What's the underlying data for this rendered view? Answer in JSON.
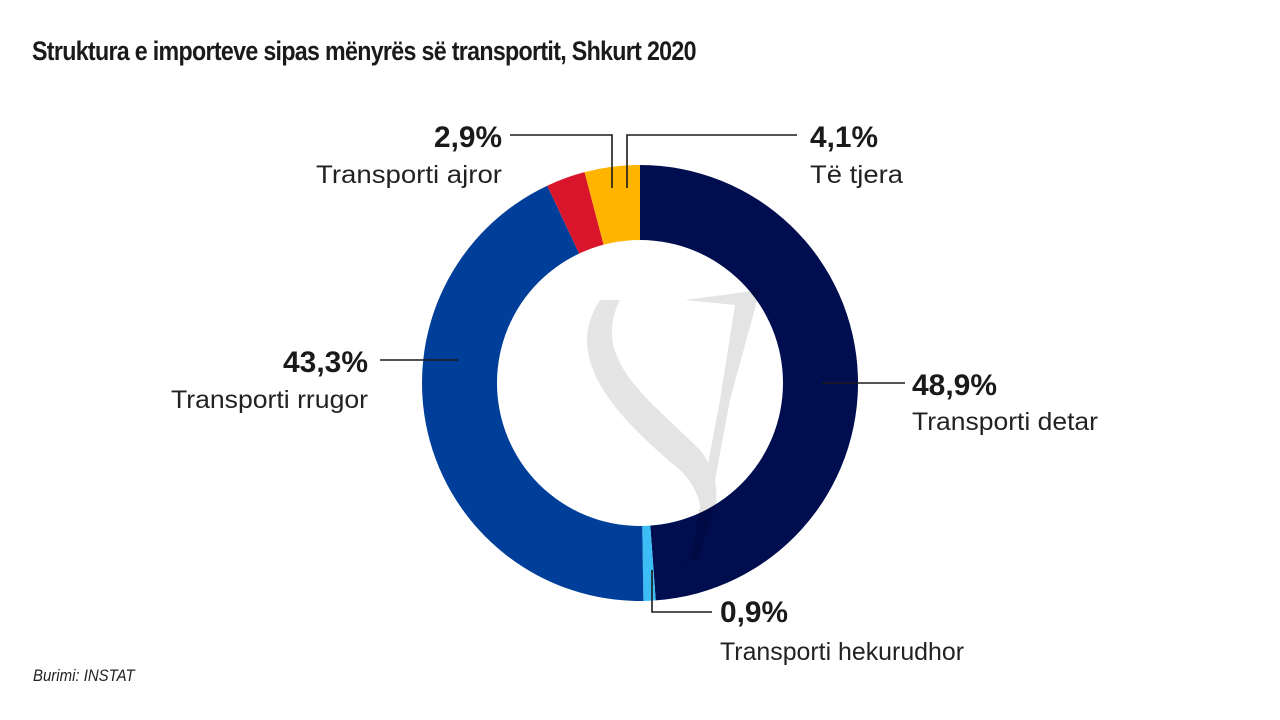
{
  "title": "Struktura e importeve sipas mënyrës së transportit, Shkurt 2020",
  "source": "Burimi: INSTAT",
  "chart_data": {
    "type": "pie",
    "variant": "donut",
    "title": "Struktura e importeve sipas mënyrës së transportit, Shkurt 2020",
    "start": "top",
    "direction": "clockwise",
    "unit": "%",
    "slices": [
      {
        "key": "detar",
        "label": "Transporti detar",
        "value": 48.9,
        "display": "48,9%",
        "color": "#000d4f"
      },
      {
        "key": "hekurudhor",
        "label": "Transporti hekurudhor",
        "value": 0.9,
        "display": "0,9%",
        "color": "#3dbdf5"
      },
      {
        "key": "rrugor",
        "label": "Transporti rrugor",
        "value": 43.3,
        "display": "43,3%",
        "color": "#003f99"
      },
      {
        "key": "ajror",
        "label": "Transporti ajror",
        "value": 2.9,
        "display": "2,9%",
        "color": "#d9152b"
      },
      {
        "key": "tjera",
        "label": "Të tjera",
        "value": 4.1,
        "display": "4,1%",
        "color": "#ffb400"
      }
    ],
    "legend": "none (direct labels with leader lines)"
  }
}
